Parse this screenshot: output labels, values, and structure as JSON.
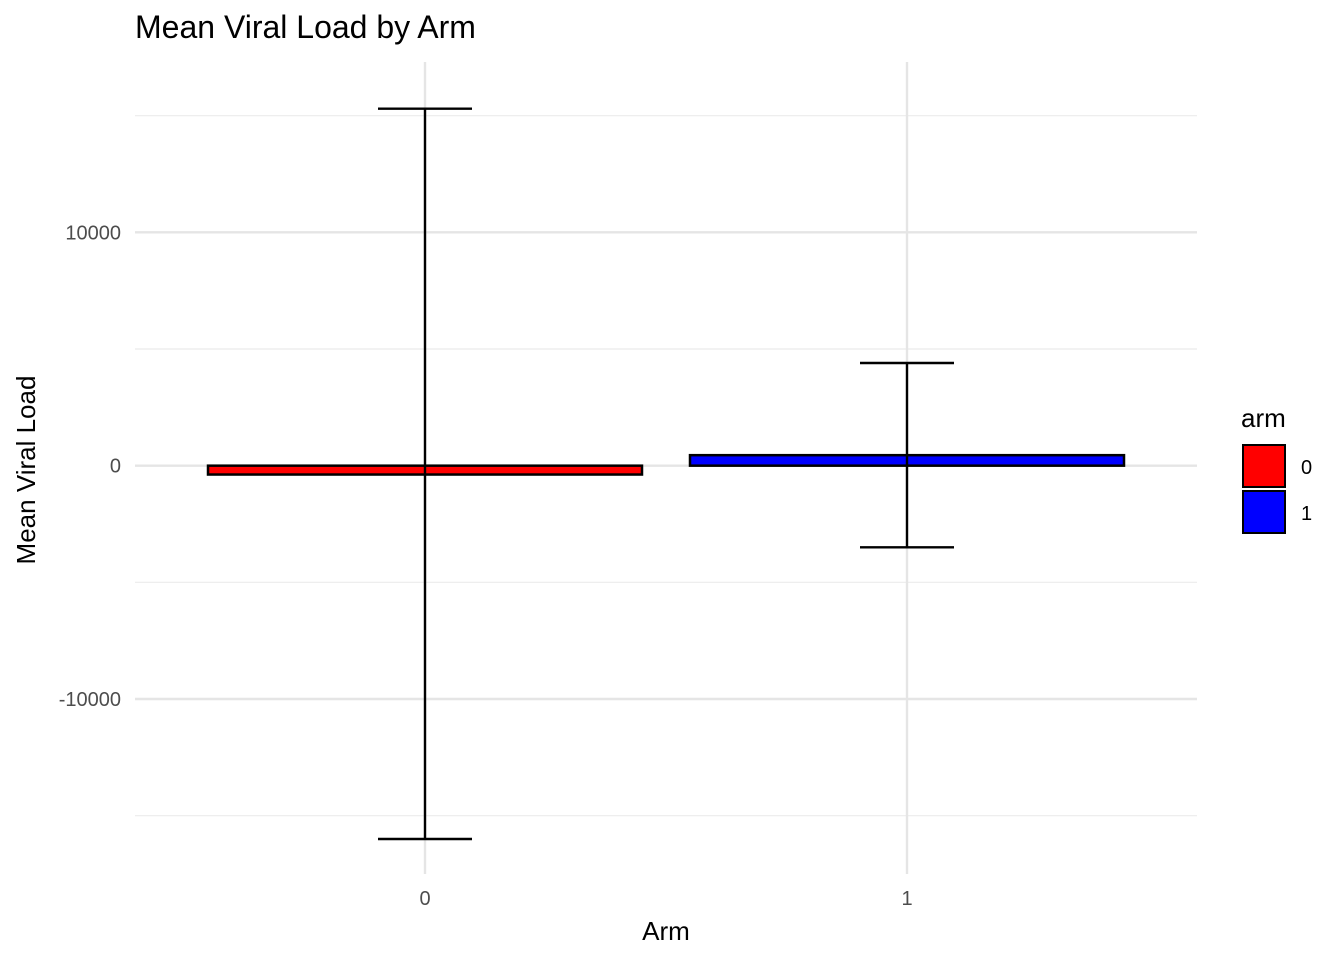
{
  "chart_data": {
    "type": "bar",
    "title": "Mean Viral Load by Arm",
    "xlabel": "Arm",
    "ylabel": "Mean Viral Load",
    "categories": [
      "0",
      "1"
    ],
    "values": [
      -380,
      450
    ],
    "error_bars": [
      {
        "category": "0",
        "low": -16000,
        "high": 15300
      },
      {
        "category": "1",
        "low": -3500,
        "high": 4400
      }
    ],
    "colors": [
      "#ff0000",
      "#0000ff"
    ],
    "ylim": [
      -17500,
      17300
    ],
    "yticks": [
      -10000,
      0,
      10000
    ],
    "ytick_labels": [
      "-10000",
      "0",
      "10000"
    ],
    "y_minor_gridlines": [
      -15000,
      -5000,
      5000,
      15000
    ],
    "grid": true,
    "legend": {
      "title": "arm",
      "placement": "right",
      "entries": [
        {
          "label": "0",
          "color": "#ff0000"
        },
        {
          "label": "1",
          "color": "#0000ff"
        }
      ]
    }
  }
}
